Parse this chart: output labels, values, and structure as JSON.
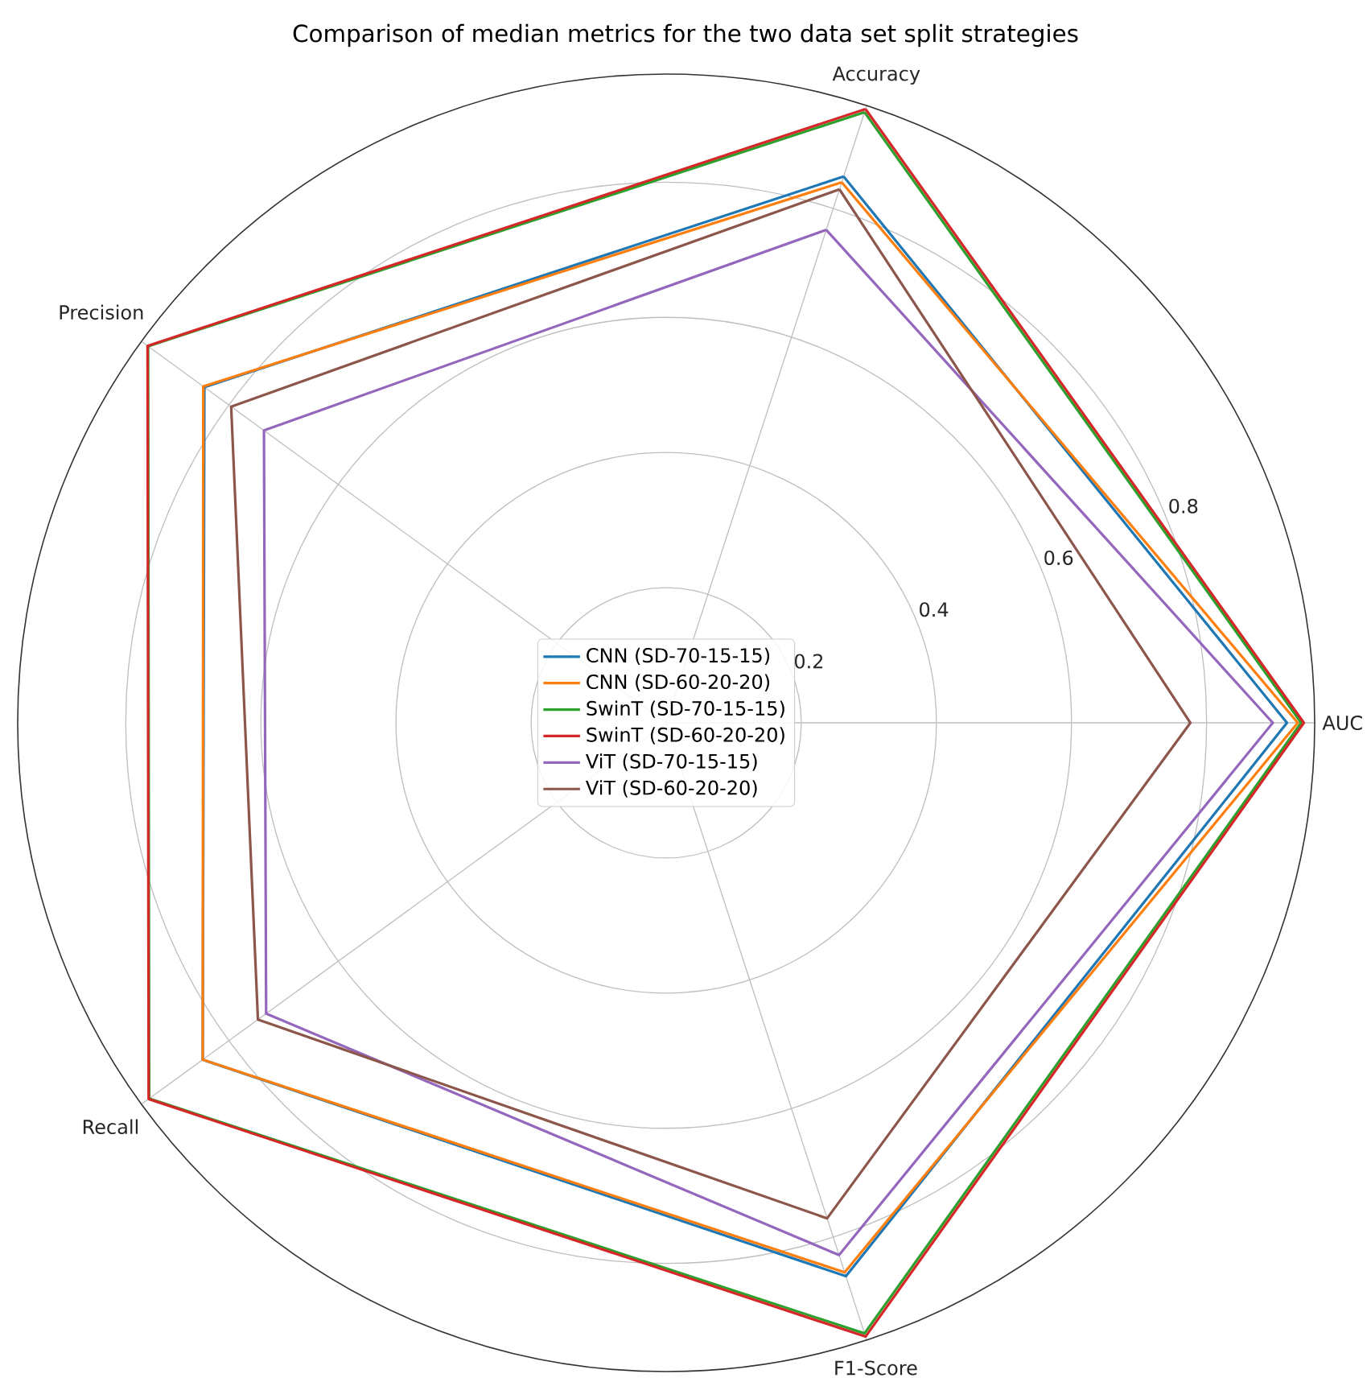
{
  "chart_data": {
    "type": "radar",
    "title": "Comparison of median metrics for the two data set split strategies",
    "categories": [
      "Accuracy",
      "AUC",
      "F1-Score",
      "Recall",
      "Precision"
    ],
    "ylim": [
      0,
      0.96
    ],
    "yticks": [
      0.2,
      0.4,
      0.6,
      0.8
    ],
    "grid": true,
    "legend": "center",
    "series": [
      {
        "name": "CNN (SD-70-15-15)",
        "color": "#1f77b4",
        "values": [
          0.85,
          0.919,
          0.861,
          0.848,
          0.845
        ]
      },
      {
        "name": "CNN (SD-60-20-20)",
        "color": "#ff7f0e",
        "values": [
          0.841,
          0.935,
          0.855,
          0.848,
          0.847
        ]
      },
      {
        "name": "SwinT (SD-70-15-15)",
        "color": "#2ca02c",
        "values": [
          0.95,
          0.94,
          0.95,
          0.946,
          0.948
        ]
      },
      {
        "name": "SwinT (SD-60-20-20)",
        "color": "#d62728",
        "values": [
          0.955,
          0.944,
          0.955,
          0.947,
          0.949
        ]
      },
      {
        "name": "ViT (SD-70-15-15)",
        "color": "#9467bd",
        "values": [
          0.767,
          0.898,
          0.828,
          0.732,
          0.736
        ]
      },
      {
        "name": "ViT (SD-60-20-20)",
        "color": "#8c564b",
        "values": [
          0.83,
          0.776,
          0.771,
          0.747,
          0.796
        ]
      }
    ]
  }
}
